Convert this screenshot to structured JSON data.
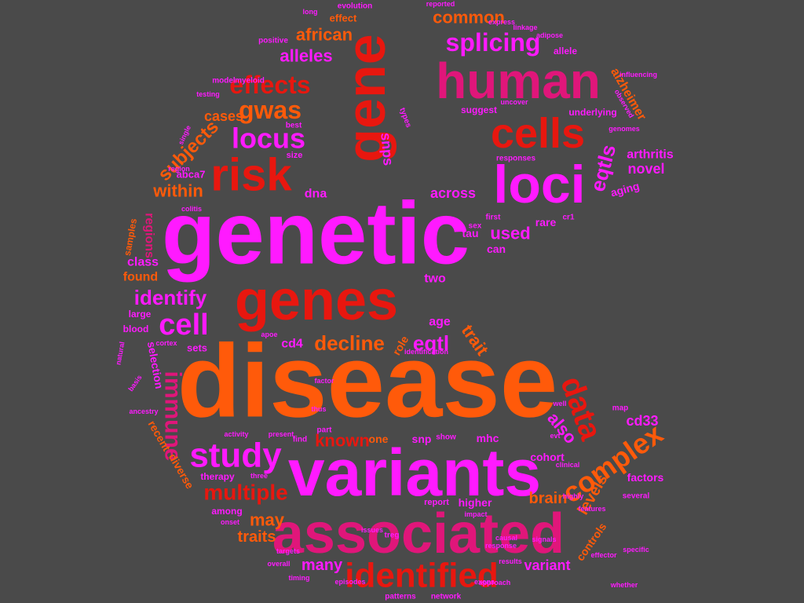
{
  "canvas": {
    "background": "#4a4a4a"
  },
  "palette": {
    "magenta": "#ff1aff",
    "red": "#e8170f",
    "orange": "#ff5a0a",
    "pink": "#e0167a",
    "crimson": "#c7103c"
  },
  "words": [
    {
      "text": "disease",
      "weight": 100,
      "color": "orange"
    },
    {
      "text": "genetic",
      "weight": 92,
      "color": "magenta"
    },
    {
      "text": "variants",
      "weight": 70,
      "color": "magenta"
    },
    {
      "text": "associated",
      "weight": 66,
      "color": "pink"
    },
    {
      "text": "genes",
      "weight": 60,
      "color": "red"
    },
    {
      "text": "human",
      "weight": 58,
      "color": "pink"
    },
    {
      "text": "gene",
      "weight": 56,
      "color": "red"
    },
    {
      "text": "loci",
      "weight": 52,
      "color": "magenta"
    },
    {
      "text": "risk",
      "weight": 44,
      "color": "red"
    },
    {
      "text": "cells",
      "weight": 40,
      "color": "red"
    },
    {
      "text": "identified",
      "weight": 36,
      "color": "red"
    },
    {
      "text": "study",
      "weight": 32,
      "color": "magenta"
    },
    {
      "text": "immune",
      "weight": 30,
      "color": "pink"
    },
    {
      "text": "data",
      "weight": 29,
      "color": "red"
    },
    {
      "text": "complex",
      "weight": 27,
      "color": "orange"
    },
    {
      "text": "cell",
      "weight": 26,
      "color": "magenta"
    },
    {
      "text": "locus",
      "weight": 24,
      "color": "magenta"
    },
    {
      "text": "effects",
      "weight": 23,
      "color": "red"
    },
    {
      "text": "gwas",
      "weight": 23,
      "color": "orange"
    },
    {
      "text": "splicing",
      "weight": 23,
      "color": "magenta"
    },
    {
      "text": "multiple",
      "weight": 22,
      "color": "red"
    },
    {
      "text": "decline",
      "weight": 21,
      "color": "orange"
    },
    {
      "text": "identify",
      "weight": 21,
      "color": "magenta"
    },
    {
      "text": "eqtl",
      "weight": 20,
      "color": "magenta"
    },
    {
      "text": "eqtls",
      "weight": 20,
      "color": "magenta"
    },
    {
      "text": "subjects",
      "weight": 19,
      "color": "orange"
    },
    {
      "text": "known",
      "weight": 19,
      "color": "red"
    },
    {
      "text": "used",
      "weight": 19,
      "color": "magenta"
    },
    {
      "text": "common",
      "weight": 19,
      "color": "orange"
    },
    {
      "text": "alleles",
      "weight": 18,
      "color": "magenta"
    },
    {
      "text": "african",
      "weight": 18,
      "color": "orange"
    },
    {
      "text": "within",
      "weight": 18,
      "color": "orange"
    },
    {
      "text": "also",
      "weight": 18,
      "color": "magenta"
    },
    {
      "text": "trait",
      "weight": 18,
      "color": "orange"
    },
    {
      "text": "may",
      "weight": 17,
      "color": "orange"
    },
    {
      "text": "many",
      "weight": 17,
      "color": "magenta"
    },
    {
      "text": "traits",
      "weight": 16,
      "color": "orange"
    },
    {
      "text": "brain",
      "weight": 16,
      "color": "orange"
    },
    {
      "text": "levels",
      "weight": 16,
      "color": "orange"
    },
    {
      "text": "variant",
      "weight": 16,
      "color": "magenta"
    },
    {
      "text": "cd33",
      "weight": 15,
      "color": "magenta"
    },
    {
      "text": "novel",
      "weight": 15,
      "color": "magenta"
    },
    {
      "text": "snps",
      "weight": 15,
      "color": "magenta"
    },
    {
      "text": "cases",
      "weight": 15,
      "color": "orange"
    },
    {
      "text": "across",
      "weight": 15,
      "color": "magenta"
    },
    {
      "text": "arthritis",
      "weight": 14,
      "color": "magenta"
    },
    {
      "text": "alzheimer",
      "weight": 14,
      "color": "orange"
    },
    {
      "text": "found",
      "weight": 14,
      "color": "orange"
    },
    {
      "text": "class",
      "weight": 14,
      "color": "magenta"
    },
    {
      "text": "regions",
      "weight": 14,
      "color": "pink"
    },
    {
      "text": "age",
      "weight": 14,
      "color": "magenta"
    },
    {
      "text": "two",
      "weight": 14,
      "color": "magenta"
    },
    {
      "text": "cd4",
      "weight": 14,
      "color": "magenta"
    },
    {
      "text": "dna",
      "weight": 14,
      "color": "magenta"
    },
    {
      "text": "rare",
      "weight": 13,
      "color": "magenta"
    },
    {
      "text": "tau",
      "weight": 13,
      "color": "magenta"
    },
    {
      "text": "can",
      "weight": 13,
      "color": "magenta"
    },
    {
      "text": "one",
      "weight": 13,
      "color": "orange"
    },
    {
      "text": "snp",
      "weight": 13,
      "color": "magenta"
    },
    {
      "text": "higher",
      "weight": 13,
      "color": "magenta"
    },
    {
      "text": "mhc",
      "weight": 12,
      "color": "magenta"
    },
    {
      "text": "controls",
      "weight": 12,
      "color": "orange"
    },
    {
      "text": "factors",
      "weight": 12,
      "color": "magenta"
    },
    {
      "text": "selection",
      "weight": 12,
      "color": "magenta"
    },
    {
      "text": "cohort",
      "weight": 12,
      "color": "magenta"
    },
    {
      "text": "aging",
      "weight": 12,
      "color": "magenta"
    },
    {
      "text": "abca7",
      "weight": 12,
      "color": "magenta"
    },
    {
      "text": "sets",
      "weight": 12,
      "color": "magenta"
    },
    {
      "text": "role",
      "weight": 12,
      "color": "orange"
    },
    {
      "text": "large",
      "weight": 12,
      "color": "magenta"
    },
    {
      "text": "blood",
      "weight": 12,
      "color": "magenta"
    },
    {
      "text": "samples",
      "weight": 12,
      "color": "orange"
    },
    {
      "text": "recent",
      "weight": 12,
      "color": "orange"
    },
    {
      "text": "diverse",
      "weight": 11,
      "color": "orange"
    },
    {
      "text": "therapy",
      "weight": 11,
      "color": "magenta"
    },
    {
      "text": "among",
      "weight": 11,
      "color": "magenta"
    },
    {
      "text": "report",
      "weight": 11,
      "color": "magenta"
    },
    {
      "text": "effect",
      "weight": 11,
      "color": "orange"
    },
    {
      "text": "allele",
      "weight": 11,
      "color": "magenta"
    },
    {
      "text": "evolution",
      "weight": 10,
      "color": "magenta"
    },
    {
      "text": "underlying",
      "weight": 11,
      "color": "magenta"
    },
    {
      "text": "suggest",
      "weight": 11,
      "color": "magenta"
    },
    {
      "text": "size",
      "weight": 11,
      "color": "magenta"
    },
    {
      "text": "best",
      "weight": 10,
      "color": "magenta"
    },
    {
      "text": "model",
      "weight": 10,
      "color": "magenta"
    },
    {
      "text": "myeloid",
      "weight": 10,
      "color": "magenta"
    },
    {
      "text": "positive",
      "weight": 10,
      "color": "magenta"
    },
    {
      "text": "responses",
      "weight": 10,
      "color": "magenta"
    },
    {
      "text": "first",
      "weight": 10,
      "color": "magenta"
    },
    {
      "text": "cr1",
      "weight": 10,
      "color": "magenta"
    },
    {
      "text": "sex",
      "weight": 10,
      "color": "magenta"
    },
    {
      "text": "show",
      "weight": 10,
      "color": "magenta"
    },
    {
      "text": "map",
      "weight": 10,
      "color": "magenta"
    },
    {
      "text": "several",
      "weight": 10,
      "color": "magenta"
    },
    {
      "text": "treg",
      "weight": 10,
      "color": "magenta"
    },
    {
      "text": "patterns",
      "weight": 10,
      "color": "magenta"
    },
    {
      "text": "network",
      "weight": 10,
      "color": "magenta"
    },
    {
      "text": "find",
      "weight": 10,
      "color": "magenta"
    },
    {
      "text": "part",
      "weight": 10,
      "color": "magenta"
    },
    {
      "text": "types",
      "weight": 10,
      "color": "magenta"
    },
    {
      "text": "well",
      "weight": 9,
      "color": "magenta"
    },
    {
      "text": "clinical",
      "weight": 9,
      "color": "magenta"
    },
    {
      "text": "features",
      "weight": 9,
      "color": "magenta"
    },
    {
      "text": "highly",
      "weight": 9,
      "color": "magenta"
    },
    {
      "text": "cortex",
      "weight": 9,
      "color": "magenta"
    },
    {
      "text": "apoe",
      "weight": 9,
      "color": "magenta"
    },
    {
      "text": "timing",
      "weight": 9,
      "color": "magenta"
    },
    {
      "text": "uncover",
      "weight": 9,
      "color": "magenta"
    },
    {
      "text": "linkage",
      "weight": 9,
      "color": "magenta"
    },
    {
      "text": "reported",
      "weight": 9,
      "color": "magenta"
    },
    {
      "text": "genomes",
      "weight": 9,
      "color": "magenta"
    },
    {
      "text": "observed",
      "weight": 9,
      "color": "magenta"
    },
    {
      "text": "colitis",
      "weight": 9,
      "color": "magenta"
    },
    {
      "text": "influencing",
      "weight": 9,
      "color": "magenta"
    },
    {
      "text": "single",
      "weight": 9,
      "color": "magenta"
    },
    {
      "text": "natural",
      "weight": 9,
      "color": "magenta"
    },
    {
      "text": "testing",
      "weight": 9,
      "color": "magenta"
    },
    {
      "text": "region",
      "weight": 9,
      "color": "magenta"
    },
    {
      "text": "long",
      "weight": 9,
      "color": "magenta"
    },
    {
      "text": "present",
      "weight": 9,
      "color": "magenta"
    },
    {
      "text": "activity",
      "weight": 9,
      "color": "magenta"
    },
    {
      "text": "identification",
      "weight": 9,
      "color": "magenta"
    },
    {
      "text": "factor",
      "weight": 9,
      "color": "magenta"
    },
    {
      "text": "thus",
      "weight": 9,
      "color": "magenta"
    },
    {
      "text": "evt",
      "weight": 9,
      "color": "magenta"
    },
    {
      "text": "impact",
      "weight": 9,
      "color": "magenta"
    },
    {
      "text": "ancestry",
      "weight": 9,
      "color": "magenta"
    },
    {
      "text": "basis",
      "weight": 9,
      "color": "magenta"
    },
    {
      "text": "onset",
      "weight": 9,
      "color": "magenta"
    },
    {
      "text": "three",
      "weight": 9,
      "color": "magenta"
    },
    {
      "text": "overall",
      "weight": 9,
      "color": "magenta"
    },
    {
      "text": "targets",
      "weight": 9,
      "color": "magenta"
    },
    {
      "text": "issues",
      "weight": 9,
      "color": "magenta"
    },
    {
      "text": "episodes",
      "weight": 9,
      "color": "magenta"
    },
    {
      "text": "express",
      "weight": 9,
      "color": "magenta"
    },
    {
      "text": "adipose",
      "weight": 9,
      "color": "magenta"
    },
    {
      "text": "exons",
      "weight": 9,
      "color": "magenta"
    },
    {
      "text": "signals",
      "weight": 9,
      "color": "magenta"
    },
    {
      "text": "approach",
      "weight": 9,
      "color": "magenta"
    },
    {
      "text": "causal",
      "weight": 9,
      "color": "magenta"
    },
    {
      "text": "response",
      "weight": 9,
      "color": "magenta"
    },
    {
      "text": "results",
      "weight": 9,
      "color": "magenta"
    },
    {
      "text": "whether",
      "weight": 9,
      "color": "magenta"
    },
    {
      "text": "specific",
      "weight": 9,
      "color": "magenta"
    },
    {
      "text": "effector",
      "weight": 9,
      "color": "magenta"
    },
    {
      "text": "provide",
      "weight": 9,
      "color": "magenta"
    },
    {
      "text": "memory",
      "weight": 9,
      "color": "magenta"
    }
  ]
}
